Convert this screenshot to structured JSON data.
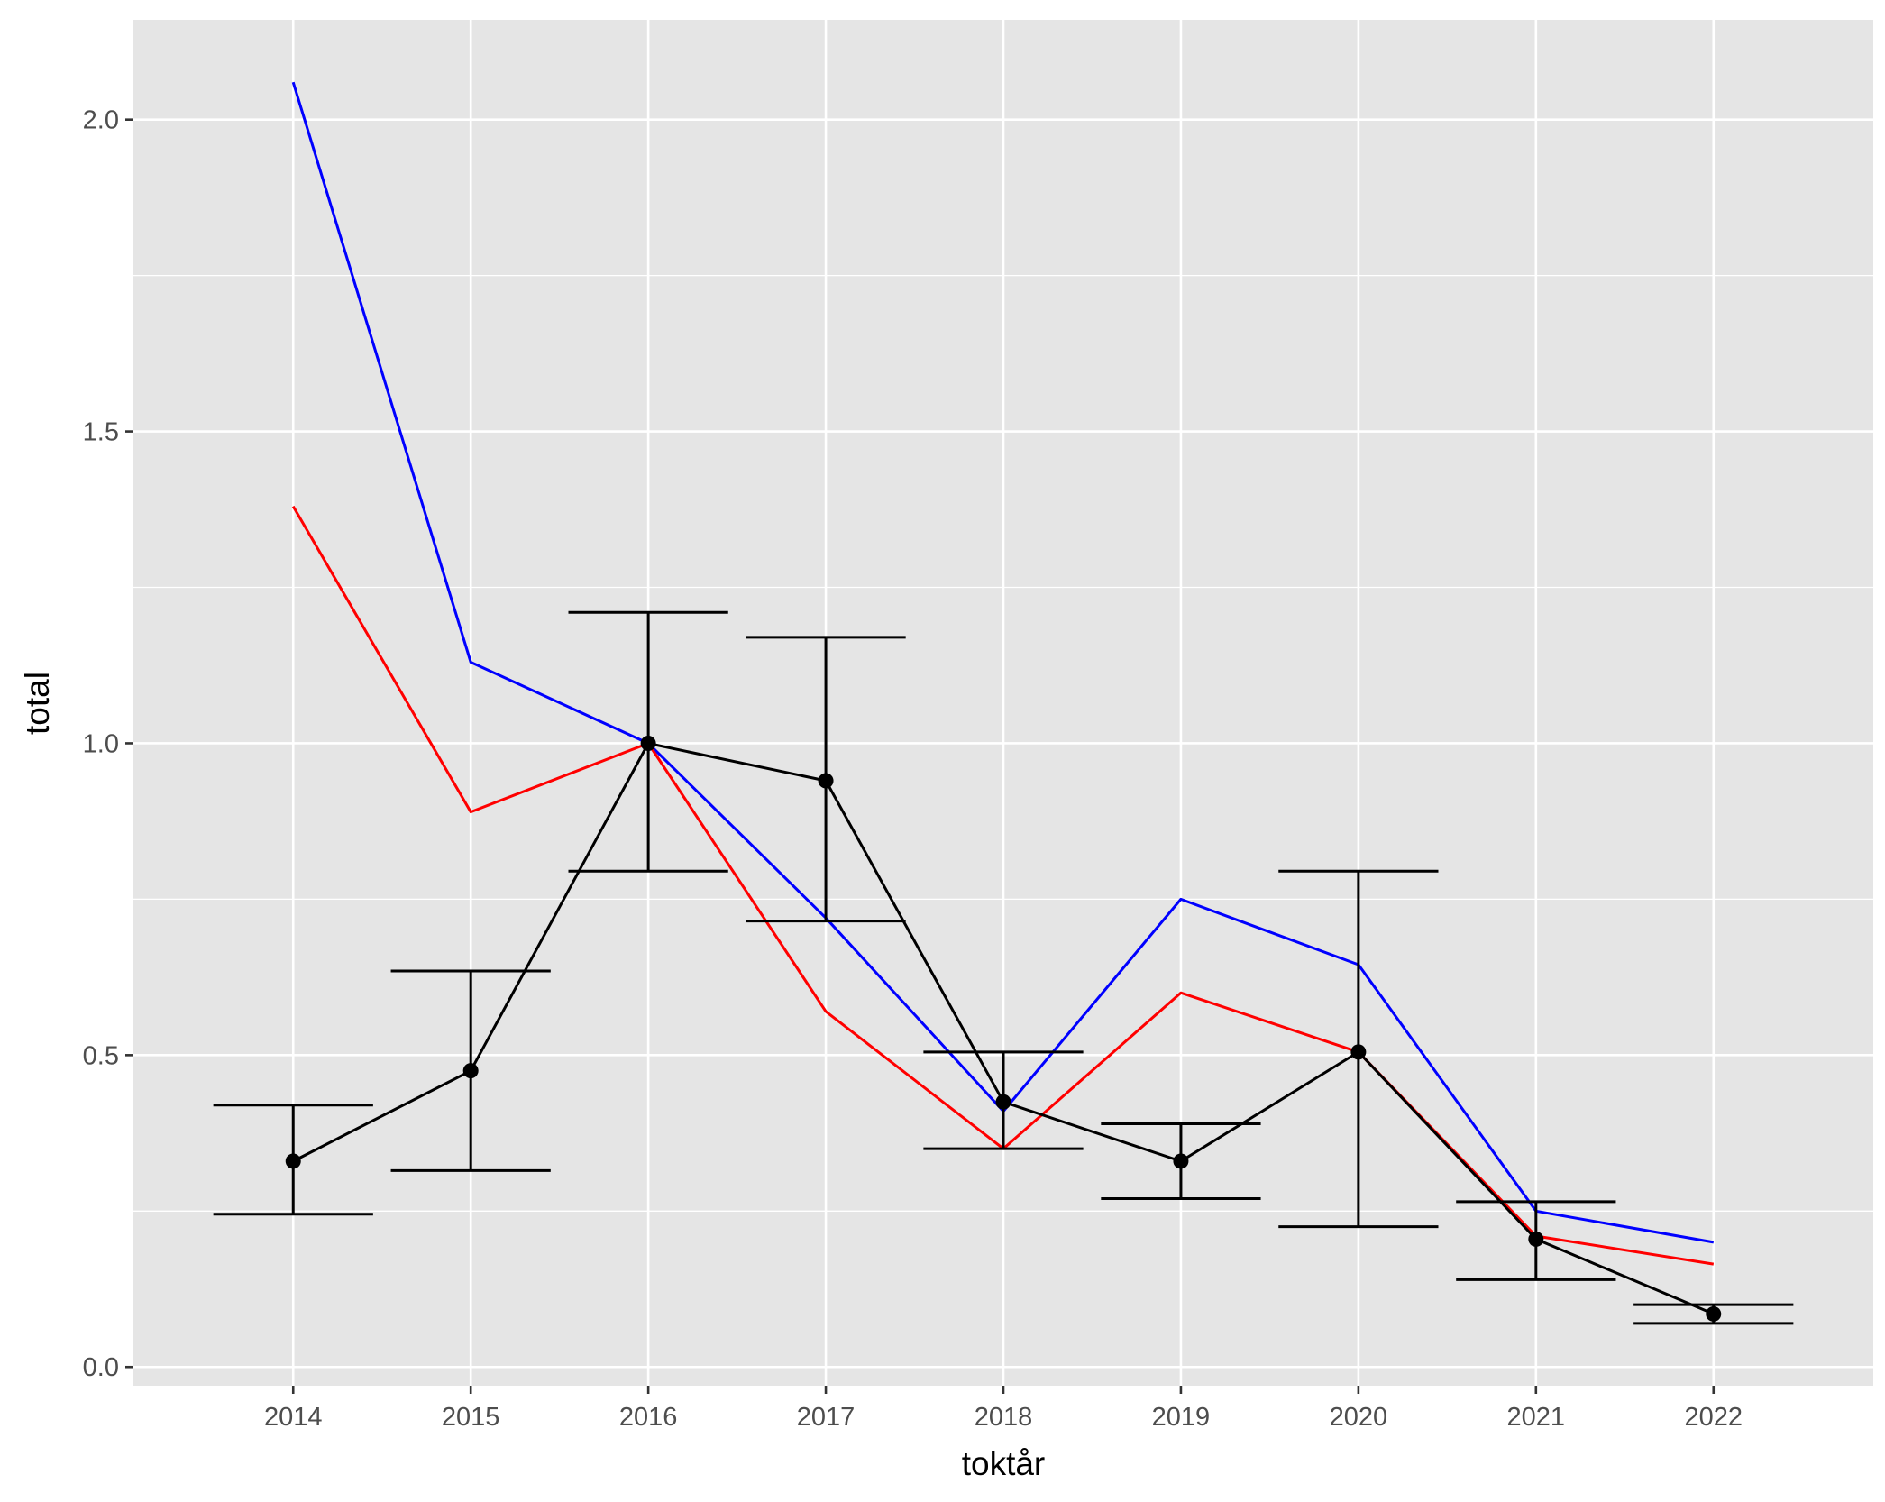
{
  "chart_data": {
    "type": "line",
    "xlabel": "toktår",
    "ylabel": "total",
    "x": [
      2014,
      2015,
      2016,
      2017,
      2018,
      2019,
      2020,
      2021,
      2022
    ],
    "x_tick_labels": [
      "2014",
      "2015",
      "2016",
      "2017",
      "2018",
      "2019",
      "2020",
      "2021",
      "2022"
    ],
    "xlim": [
      2013.1,
      2022.9
    ],
    "ylim": [
      -0.03,
      2.16
    ],
    "y_ticks": [
      0.0,
      0.5,
      1.0,
      1.5,
      2.0
    ],
    "y_tick_labels": [
      "0.0",
      "0.5",
      "1.0",
      "1.5",
      "2.0"
    ],
    "y_minor_ticks": [
      0.25,
      0.75,
      1.25,
      1.75
    ],
    "grid": true,
    "background": "#e5e5e5",
    "series": [
      {
        "color": "#0000ff",
        "markers": false,
        "values": [
          2.06,
          1.13,
          1.0,
          0.72,
          0.41,
          0.75,
          0.645,
          0.25,
          0.2
        ]
      },
      {
        "color": "#ff0000",
        "markers": false,
        "values": [
          1.38,
          0.89,
          1.0,
          0.57,
          0.35,
          0.6,
          0.505,
          0.21,
          0.165
        ]
      },
      {
        "color": "#000000",
        "markers": true,
        "values": [
          0.33,
          0.475,
          1.0,
          0.94,
          0.425,
          0.33,
          0.505,
          0.205,
          0.085
        ],
        "error_low": [
          0.245,
          0.315,
          0.795,
          0.715,
          0.35,
          0.27,
          0.225,
          0.14,
          0.07
        ],
        "error_high": [
          0.42,
          0.635,
          1.21,
          1.17,
          0.505,
          0.39,
          0.795,
          0.265,
          0.1
        ]
      }
    ]
  }
}
